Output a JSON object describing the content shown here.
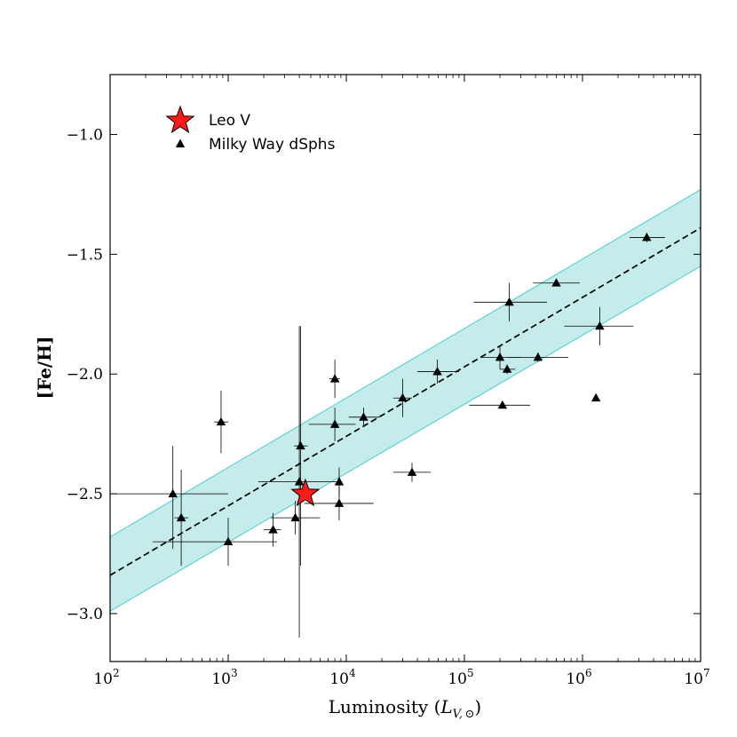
{
  "chart_data": {
    "type": "scatter",
    "xscale": "log",
    "xlim": [
      100,
      10000000
    ],
    "ylim": [
      -3.2,
      -0.75
    ],
    "xticks": [
      {
        "base": "10",
        "exp": "2"
      },
      {
        "base": "10",
        "exp": "3"
      },
      {
        "base": "10",
        "exp": "4"
      },
      {
        "base": "10",
        "exp": "5"
      },
      {
        "base": "10",
        "exp": "6"
      },
      {
        "base": "10",
        "exp": "7"
      }
    ],
    "yticks": [
      "−1.0",
      "−1.5",
      "−2.0",
      "−2.5",
      "−3.0"
    ],
    "ytick_values": [
      -1.0,
      -1.5,
      -2.0,
      -2.5,
      -3.0
    ],
    "xlabel": "Luminosity (",
    "xlabel_math": "L",
    "xlabel_sub": "V, ⊙",
    "xlabel_close": ")",
    "ylabel": "[Fe/H]",
    "legend": {
      "position": "top-left",
      "entries": [
        "Leo V",
        "Milky Way dSphs"
      ]
    },
    "colors": {
      "band_fill": "#c6ebeb",
      "band_edge": "#5fd3d3",
      "leo_v": "#ff1a1a",
      "dsph": "#000000"
    },
    "fit_line": {
      "x0": 100,
      "y0": -2.84,
      "x1": 10000000,
      "y1": -1.39
    },
    "band": {
      "lower": [
        -2.99,
        -1.55
      ],
      "upper": [
        -2.68,
        -1.23
      ]
    },
    "series": [
      {
        "name": "Leo V",
        "marker": "star",
        "points": [
          {
            "x": 4500,
            "y": -2.5
          }
        ]
      },
      {
        "name": "Milky Way dSphs",
        "marker": "triangle",
        "points": [
          {
            "x": 340,
            "y": -2.5,
            "xerr": [
              100,
              1000
            ],
            "yerr": [
              0.23,
              0.2
            ]
          },
          {
            "x": 400,
            "y": -2.6,
            "xerr": [
              350,
              460
            ],
            "yerr": [
              0.2,
              0.2
            ]
          },
          {
            "x": 870,
            "y": -2.2,
            "xerr": [
              760,
              1000
            ],
            "yerr": [
              0.13,
              0.13
            ]
          },
          {
            "x": 1000,
            "y": -2.7,
            "xerr": [
              230,
              2600
            ],
            "yerr": [
              0.1,
              0.1
            ]
          },
          {
            "x": 2400,
            "y": -2.65,
            "xerr": [
              2000,
              2800
            ],
            "yerr": [
              0.07,
              0.07
            ]
          },
          {
            "x": 3700,
            "y": -2.6,
            "xerr": [
              2300,
              6000
            ],
            "yerr": [
              0.07,
              0.07
            ]
          },
          {
            "x": 4000,
            "y": -2.45,
            "xerr": [
              1800,
              8800
            ],
            "yerr": [
              0.65,
              0.65
            ]
          },
          {
            "x": 4100,
            "y": -2.3,
            "xerr": [
              3600,
              4700
            ],
            "yerr": [
              0.5,
              0.5
            ]
          },
          {
            "x": 8000,
            "y": -2.02,
            "xerr": [
              7200,
              8800
            ],
            "yerr": [
              0.08,
              0.08
            ]
          },
          {
            "x": 8000,
            "y": -2.21,
            "xerr": [
              4800,
              12000
            ],
            "yerr": [
              0.07,
              0.07
            ]
          },
          {
            "x": 8700,
            "y": -2.45,
            "xerr": [
              8200,
              9200
            ],
            "yerr": [
              0.06,
              0.06
            ]
          },
          {
            "x": 8700,
            "y": -2.54,
            "xerr": [
              4400,
              17000
            ],
            "yerr": [
              0.07,
              0.07
            ]
          },
          {
            "x": 14000,
            "y": -2.18,
            "xerr": [
              10500,
              19000
            ],
            "yerr": [
              0.04,
              0.04
            ]
          },
          {
            "x": 30000,
            "y": -2.1,
            "xerr": [
              25000,
              36000
            ],
            "yerr": [
              0.08,
              0.08
            ]
          },
          {
            "x": 36000,
            "y": -2.41,
            "xerr": [
              25000,
              52000
            ],
            "yerr": [
              0.04,
              0.04
            ]
          },
          {
            "x": 59000,
            "y": -1.99,
            "xerr": [
              40000,
              90000
            ],
            "yerr": [
              0.05,
              0.05
            ]
          },
          {
            "x": 200000,
            "y": -1.93,
            "xerr": [
              140000,
              300000
            ],
            "yerr": [
              0.05,
              0.05
            ]
          },
          {
            "x": 210000,
            "y": -2.13,
            "xerr": [
              110000,
              360000
            ],
            "yerr": [
              0.01,
              0.01
            ]
          },
          {
            "x": 230000,
            "y": -1.98,
            "xerr": [
              200000,
              270000
            ],
            "yerr": [
              0.02,
              0.02
            ]
          },
          {
            "x": 240000,
            "y": -1.7,
            "xerr": [
              120000,
              500000
            ],
            "yerr": [
              0.08,
              0.08
            ]
          },
          {
            "x": 420000,
            "y": -1.93,
            "xerr": [
              230000,
              760000
            ],
            "yerr": [
              0.02,
              0.02
            ]
          },
          {
            "x": 600000,
            "y": -1.62,
            "xerr": [
              380000,
              950000
            ],
            "yerr": [
              0.01,
              0.01
            ]
          },
          {
            "x": 1300000,
            "y": -2.1,
            "xerr": [
              1300000,
              1300000
            ],
            "yerr": [
              0.0,
              0.0
            ]
          },
          {
            "x": 1400000,
            "y": -1.8,
            "xerr": [
              700000,
              2700000
            ],
            "yerr": [
              0.08,
              0.08
            ]
          },
          {
            "x": 3500000,
            "y": -1.43,
            "xerr": [
              2500000,
              5000000
            ],
            "yerr": [
              0.02,
              0.02
            ]
          }
        ]
      }
    ]
  }
}
